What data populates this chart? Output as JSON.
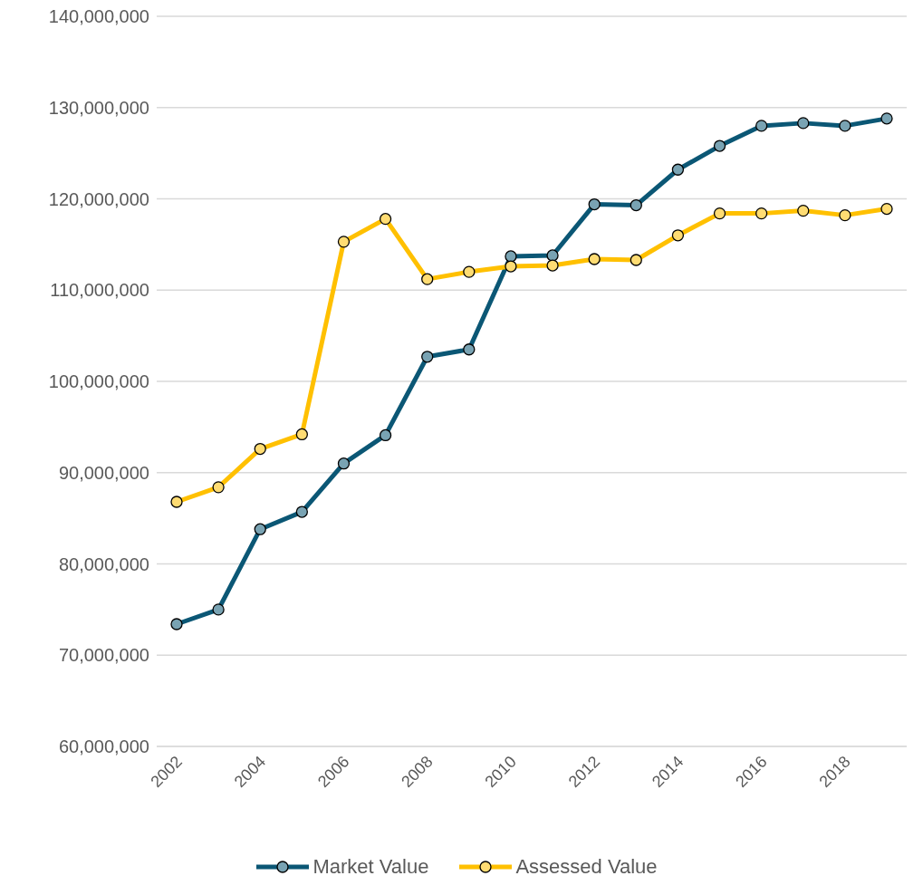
{
  "chart_data": {
    "type": "line",
    "categories": [
      "2002",
      null,
      "2004",
      null,
      "2006",
      null,
      "2008",
      null,
      "2010",
      null,
      "2012",
      null,
      "2014",
      null,
      "2016",
      null,
      "2018",
      null
    ],
    "series": [
      {
        "name": "Market Value",
        "color": "#0b5775",
        "values": [
          73400000,
          75000000,
          83800000,
          85700000,
          91000000,
          94100000,
          102700000,
          103500000,
          113700000,
          113800000,
          119400000,
          119300000,
          123200000,
          125800000,
          128000000,
          128300000,
          128000000,
          128800000
        ]
      },
      {
        "name": "Assessed Value",
        "color": "#ffc000",
        "values": [
          86800000,
          88400000,
          92600000,
          94200000,
          115300000,
          117800000,
          111200000,
          112000000,
          112600000,
          112700000,
          113400000,
          113300000,
          116000000,
          118400000,
          118400000,
          118700000,
          118200000,
          118900000
        ]
      }
    ],
    "ylim": [
      60000000,
      140000000
    ],
    "yticks": [
      {
        "value": 60000000,
        "label": "60,000,000"
      },
      {
        "value": 70000000,
        "label": "70,000,000"
      },
      {
        "value": 80000000,
        "label": "80,000,000"
      },
      {
        "value": 90000000,
        "label": "90,000,000"
      },
      {
        "value": 100000000,
        "label": "100,000,000"
      },
      {
        "value": 110000000,
        "label": "110,000,000"
      },
      {
        "value": 120000000,
        "label": "120,000,000"
      },
      {
        "value": 130000000,
        "label": "130,000,000"
      },
      {
        "value": 140000000,
        "label": "140,000,000"
      }
    ],
    "grid": "y",
    "legend": "bottom",
    "marker": "circle",
    "line_style": "solid"
  }
}
